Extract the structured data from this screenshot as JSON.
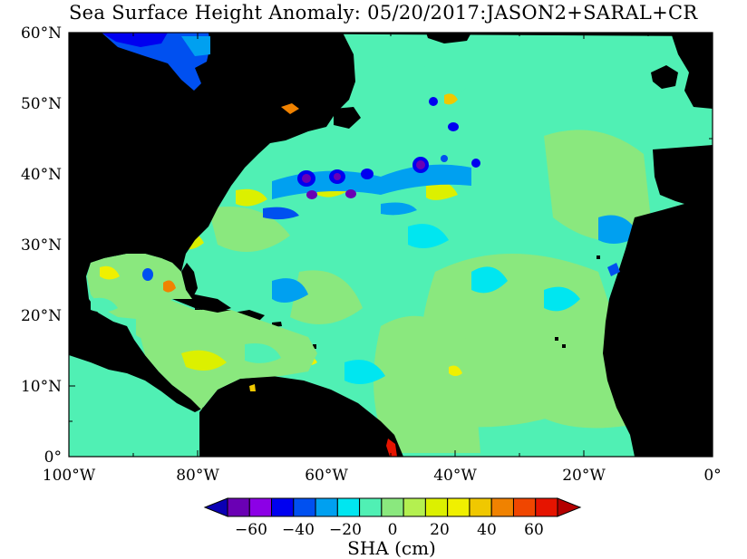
{
  "title": "Sea Surface Height Anomaly: 05/20/2017:JASON2+SARAL+CR",
  "map": {
    "lon_range": [
      -100,
      0
    ],
    "lat_range": [
      0,
      60
    ],
    "x_ticks": [
      {
        "value": -100,
        "label": "100°W"
      },
      {
        "value": -80,
        "label": "80°W"
      },
      {
        "value": -60,
        "label": "60°W"
      },
      {
        "value": -40,
        "label": "40°W"
      },
      {
        "value": -20,
        "label": "20°W"
      },
      {
        "value": 0,
        "label": "0°"
      }
    ],
    "y_ticks": [
      {
        "value": 60,
        "label": "60°N"
      },
      {
        "value": 50,
        "label": "50°N"
      },
      {
        "value": 40,
        "label": "40°N"
      },
      {
        "value": 30,
        "label": "30°N"
      },
      {
        "value": 20,
        "label": "20°N"
      },
      {
        "value": 10,
        "label": "10°N"
      },
      {
        "value": 0,
        "label": "0°"
      }
    ],
    "land_color": "#000000",
    "ocean_base_color": "#8ae87e"
  },
  "colorbar": {
    "title": "SHA (cm)",
    "colors": [
      "#0a00b4",
      "#6a00b4",
      "#8c00e6",
      "#0000f0",
      "#0050f0",
      "#00a0f0",
      "#00e6f0",
      "#50f0b4",
      "#8ae87e",
      "#b4f050",
      "#dcf000",
      "#f0f000",
      "#f0c800",
      "#f08200",
      "#f04600",
      "#e61400",
      "#b40000"
    ],
    "tick_labels": [
      "-60",
      "-40",
      "-20",
      "0",
      "20",
      "40",
      "60"
    ]
  }
}
